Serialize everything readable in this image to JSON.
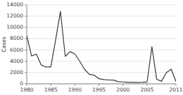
{
  "chart_data": {
    "type": "line",
    "ylabel": "Cases",
    "x": [
      1980,
      1981,
      1982,
      1983,
      1984,
      1985,
      1986,
      1987,
      1988,
      1989,
      1990,
      1991,
      1992,
      1993,
      1994,
      1995,
      1996,
      1997,
      1998,
      1999,
      2000,
      2001,
      2002,
      2003,
      2004,
      2005,
      2006,
      2007,
      2008,
      2009,
      2010,
      2011
    ],
    "values": [
      8576,
      4941,
      5270,
      3355,
      2982,
      2982,
      7790,
      12848,
      4866,
      5712,
      5292,
      4031,
      2572,
      1692,
      1537,
      906,
      751,
      683,
      666,
      387,
      338,
      266,
      270,
      231,
      258,
      314,
      6584,
      800,
      454,
      1991,
      2612,
      404
    ],
    "color": "#3a3a3a",
    "xlim": [
      1980,
      2011
    ],
    "ylim": [
      0,
      14000
    ],
    "xticks": [
      1980,
      1985,
      1990,
      1995,
      2000,
      2005,
      2011
    ],
    "yticks": [
      0,
      2000,
      4000,
      6000,
      8000,
      10000,
      12000,
      14000
    ]
  }
}
